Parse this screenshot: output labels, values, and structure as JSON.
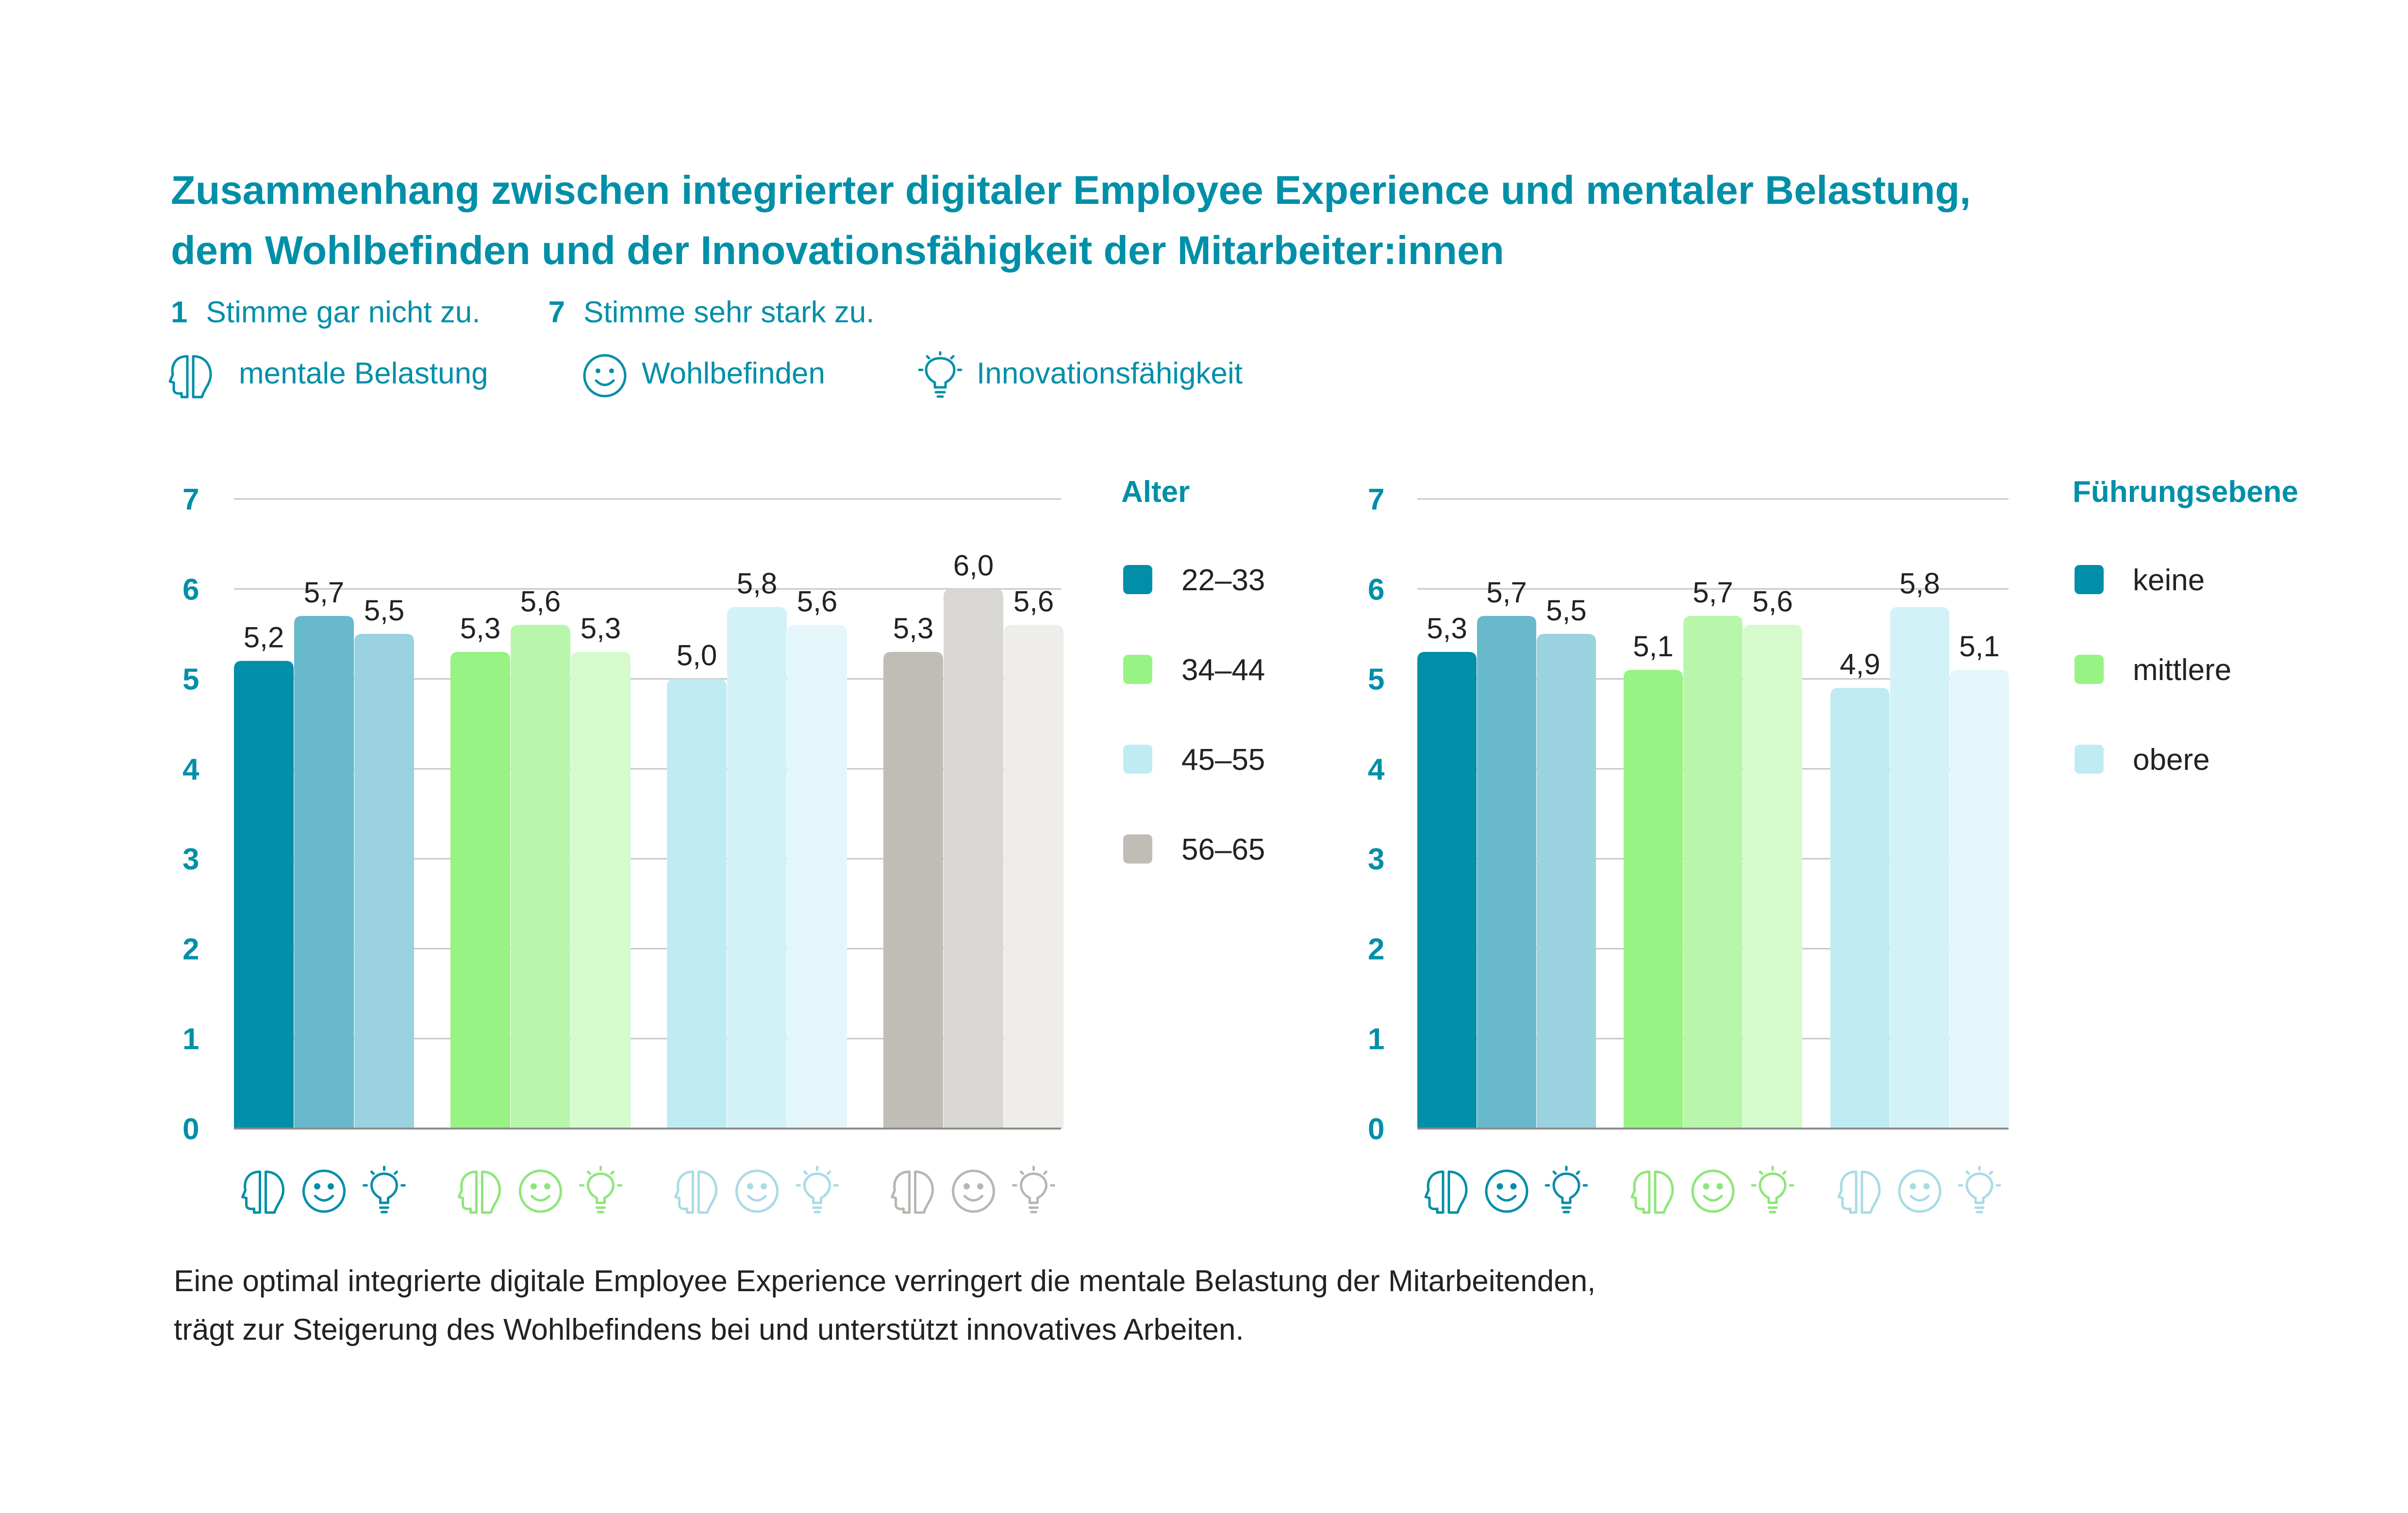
{
  "title": {
    "line1": "Zusammenhang zwischen integrierter digitaler Employee Experience und mentaler Belastung,",
    "line2": "dem Wohlbefinden und der Innovationsfähigkeit der Mitarbeiter:innen"
  },
  "scale": {
    "min_value": "1",
    "min_label": "Stimme gar nicht zu.",
    "max_value": "7",
    "max_label": "Stimme sehr stark zu."
  },
  "icon_legend": [
    {
      "icon": "brain-icon",
      "label": "mentale Belastung"
    },
    {
      "icon": "smiley-icon",
      "label": "Wohlbefinden"
    },
    {
      "icon": "lightbulb-icon",
      "label": "Innovationsfähigkeit"
    }
  ],
  "chart_data": [
    {
      "type": "bar",
      "legend_title": "Alter",
      "legend_position": "right",
      "grid": true,
      "ylim": [
        0,
        7
      ],
      "yticks": [
        "0",
        "1",
        "2",
        "3",
        "4",
        "5",
        "6",
        "7"
      ],
      "bar_dimensions": [
        "mentale Belastung",
        "Wohlbefinden",
        "Innovationsfähigkeit"
      ],
      "groups": [
        {
          "name": "22–33",
          "values": [
            5.2,
            5.7,
            5.5
          ],
          "labels": [
            "5,2",
            "5,7",
            "5,5"
          ],
          "colors": [
            "#008ea8",
            "#68b9cc",
            "#9ad2df"
          ],
          "icon_color": "#008ea8"
        },
        {
          "name": "34–44",
          "values": [
            5.3,
            5.6,
            5.3
          ],
          "labels": [
            "5,3",
            "5,6",
            "5,3"
          ],
          "colors": [
            "#97f383",
            "#b8f6ab",
            "#d5fbcc"
          ],
          "icon_color": "#8ee67a"
        },
        {
          "name": "45–55",
          "values": [
            5.0,
            5.8,
            5.6
          ],
          "labels": [
            "5,0",
            "5,8",
            "5,6"
          ],
          "colors": [
            "#bfecf3",
            "#d3f2f8",
            "#e4f6fa"
          ],
          "icon_color": "#a9dbe6"
        },
        {
          "name": "56–65",
          "values": [
            5.3,
            6.0,
            5.6
          ],
          "labels": [
            "5,3",
            "6,0",
            "5,6"
          ],
          "colors": [
            "#c0bdb7",
            "#d8d7d3",
            "#eeede9"
          ],
          "icon_color": "#b9b6b1"
        }
      ]
    },
    {
      "type": "bar",
      "legend_title": "Führungsebene",
      "legend_position": "right",
      "grid": true,
      "ylim": [
        0,
        7
      ],
      "yticks": [
        "0",
        "1",
        "2",
        "3",
        "4",
        "5",
        "6",
        "7"
      ],
      "bar_dimensions": [
        "mentale Belastung",
        "Wohlbefinden",
        "Innovationsfähigkeit"
      ],
      "groups": [
        {
          "name": "keine",
          "values": [
            5.3,
            5.7,
            5.5
          ],
          "labels": [
            "5,3",
            "5,7",
            "5,5"
          ],
          "colors": [
            "#008ea8",
            "#68b9cc",
            "#9ad2df"
          ],
          "icon_color": "#008ea8"
        },
        {
          "name": "mittlere",
          "values": [
            5.1,
            5.7,
            5.6
          ],
          "labels": [
            "5,1",
            "5,7",
            "5,6"
          ],
          "colors": [
            "#97f383",
            "#b8f6ab",
            "#d5fbcc"
          ],
          "icon_color": "#8ee67a"
        },
        {
          "name": "obere",
          "values": [
            4.9,
            5.8,
            5.1
          ],
          "labels": [
            "4,9",
            "5,8",
            "5,1"
          ],
          "colors": [
            "#bfecf3",
            "#d3f2f8",
            "#e4f6fa"
          ],
          "icon_color": "#a9dbe6"
        }
      ]
    }
  ],
  "footnote": {
    "line1": "Eine optimal integrierte digitale Employee Experience verringert die mentale Belastung der Mitarbeitenden,",
    "line2": "trägt zur Steigerung des Wohlbefindens bei und unterstützt innovatives Arbeiten."
  },
  "colors": {
    "accent": "#008fa8",
    "gridline": "#c7c7c7",
    "axis": "#8c8c8c",
    "text": "#222222"
  }
}
